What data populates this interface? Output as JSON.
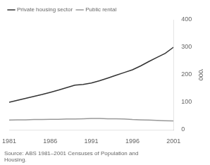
{
  "chart_data": {
    "type": "line",
    "x": [
      1981,
      1982,
      1983,
      1984,
      1985,
      1986,
      1987,
      1988,
      1989,
      1990,
      1991,
      1992,
      1993,
      1994,
      1995,
      1996,
      1997,
      1998,
      1999,
      2000,
      2001
    ],
    "series": [
      {
        "name": "Private housing sector",
        "color": "#333333",
        "values": [
          100,
          107,
          114,
          121,
          128,
          136,
          144,
          153,
          162,
          165,
          170,
          178,
          188,
          198,
          208,
          218,
          232,
          248,
          263,
          278,
          300
        ]
      },
      {
        "name": "Public rental",
        "color": "#999999",
        "values": [
          35,
          36,
          36,
          37,
          37,
          38,
          38,
          39,
          39,
          40,
          41,
          41,
          40,
          40,
          39,
          37,
          36,
          35,
          34,
          33,
          32
        ]
      }
    ],
    "xlim": [
      1981,
      2001
    ],
    "xticks": [
      1981,
      1986,
      1991,
      1996,
      2001
    ],
    "ylim": [
      0,
      400
    ],
    "yticks": [
      0,
      100,
      200,
      300,
      400
    ],
    "ylabel": "'000",
    "annotations": [
      "Source: ABS 1981–2001 Censuses of Population and\nHousing."
    ],
    "grid": false,
    "legend": "top-left"
  }
}
